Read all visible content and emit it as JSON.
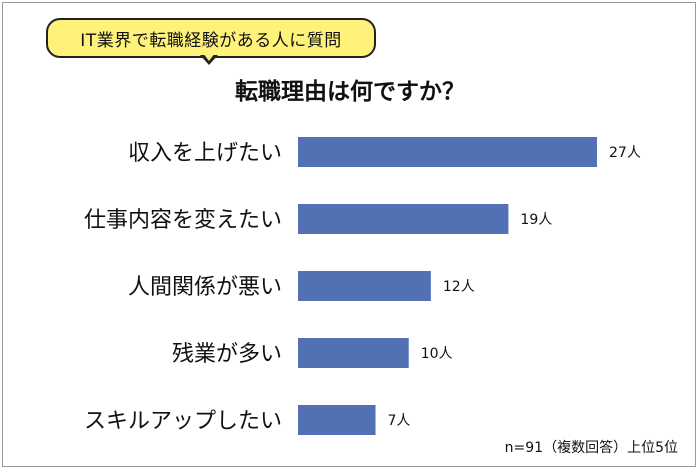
{
  "banner": "IT業界で転職経験がある人に質問",
  "chart_data": {
    "type": "bar",
    "orientation": "horizontal",
    "title": "転職理由は何ですか？",
    "categories": [
      "収入を上げたい",
      "仕事内容を変えたい",
      "人間関係が悪い",
      "残業が多い",
      "スキルアップしたい"
    ],
    "values": [
      27,
      19,
      12,
      10,
      7
    ],
    "value_labels": [
      "27人",
      "19人",
      "12人",
      "10人",
      "7人"
    ],
    "bar_color": "#5270b4",
    "xlim": [
      0,
      27
    ],
    "grid": false,
    "legend": "none"
  },
  "footnote": "n=91（複数回答）上位5位"
}
